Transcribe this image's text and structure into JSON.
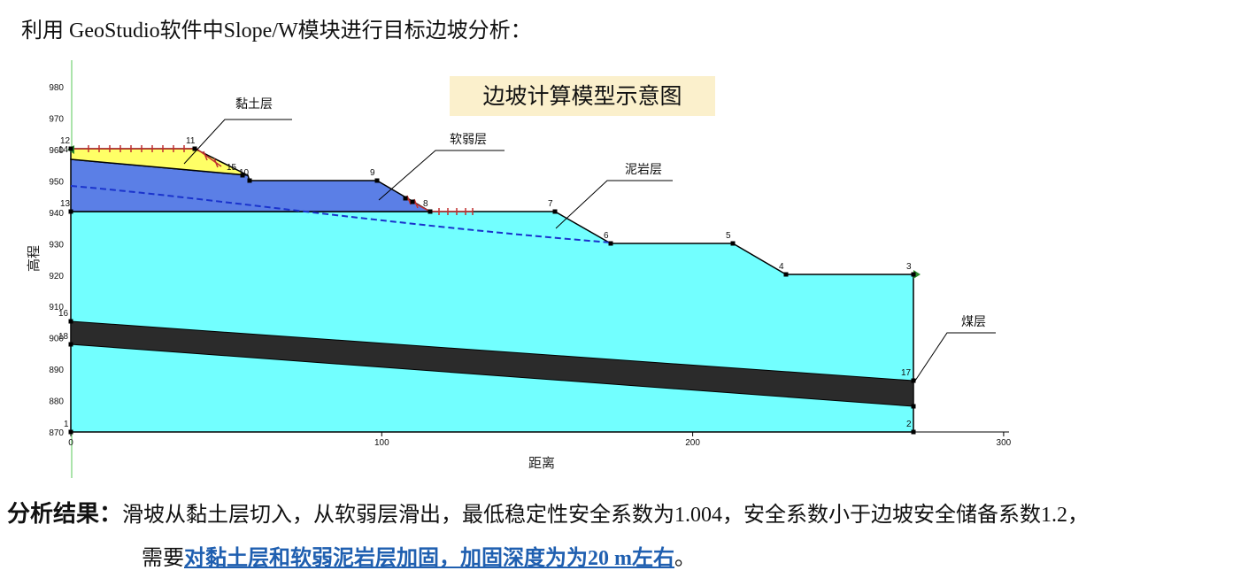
{
  "intro_text": "利用  GeoStudio软件中Slope/W模块进行目标边坡分析：",
  "diagram": {
    "title": "边坡计算模型示意图",
    "x_axis_label": "距离",
    "y_axis_label": "高程",
    "x_ticks": [
      "0",
      "100",
      "200",
      "300"
    ],
    "y_ticks": [
      "870",
      "880",
      "890",
      "900",
      "910",
      "920",
      "930",
      "940",
      "950",
      "960",
      "970",
      "980"
    ],
    "layer_labels": [
      "黏土层",
      "软弱层",
      "泥岩层",
      "煤层"
    ],
    "point_labels": [
      "1",
      "2",
      "3",
      "4",
      "5",
      "6",
      "7",
      "8",
      "9",
      "10",
      "11",
      "12",
      "13",
      "14",
      "15",
      "16",
      "17",
      "18"
    ],
    "colors": {
      "clay": "#ffff66",
      "weak": "#5b7fe6",
      "mudstone": "#72ffff",
      "coal": "#2b2b2b",
      "water_table": "#1a33cc",
      "slip_marker": "#c03030",
      "ground_line": "#000000"
    }
  },
  "result": {
    "label": "分析结果：",
    "line1": "滑坡从黏土层切入，从软弱层滑出，最低稳定性安全系数为1.004，安全系数小于边坡安全储备系数1.2，",
    "line2_prefix": "需要",
    "line2_highlight": "对黏土层和软弱泥岩层加固，加固深度为为20 m左右",
    "line2_suffix": "。"
  }
}
